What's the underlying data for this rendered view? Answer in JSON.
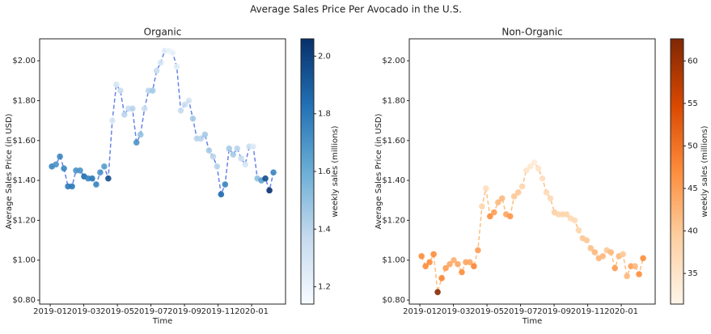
{
  "title": "Average Sales Price Per Avocado in the U.S.",
  "chart_data": [
    {
      "type": "scatter",
      "title": "Organic",
      "x_label": "Time",
      "y_label": "Average Sales Price (in USD)",
      "line_color": "#4a6de5",
      "colormap": [
        "#f7fbff",
        "#c6dbef",
        "#6baed6",
        "#2171b5",
        "#08306b"
      ],
      "colorbar_label": "weekly sales (millions)",
      "clim": [
        1.14,
        2.06
      ],
      "colorbar_ticks": [
        {
          "value": 1.2,
          "label": "1.2"
        },
        {
          "value": 1.4,
          "label": "1.4"
        },
        {
          "value": 1.6,
          "label": "1.6"
        },
        {
          "value": 1.8,
          "label": "1.8"
        },
        {
          "value": 2.0,
          "label": "2.0"
        }
      ],
      "xlim": [
        -0.63,
        14.02
      ],
      "ylim": [
        0.78,
        2.11
      ],
      "xticks": [
        {
          "value": 0,
          "label": "2019-01"
        },
        {
          "value": 2,
          "label": "2019-03"
        },
        {
          "value": 4,
          "label": "2019-05"
        },
        {
          "value": 6,
          "label": "2019-07"
        },
        {
          "value": 8,
          "label": "2019-09"
        },
        {
          "value": 10,
          "label": "2019-11"
        },
        {
          "value": 12,
          "label": "2020-01"
        }
      ],
      "yticks": [
        {
          "value": 0.8,
          "label": "$0.80"
        },
        {
          "value": 1.0,
          "label": "$1.00"
        },
        {
          "value": 1.2,
          "label": "$1.20"
        },
        {
          "value": 1.4,
          "label": "$1.40"
        },
        {
          "value": 1.6,
          "label": "$1.60"
        },
        {
          "value": 1.8,
          "label": "$1.80"
        },
        {
          "value": 2.0,
          "label": "$2.00"
        }
      ],
      "x": [
        0.1,
        0.34,
        0.58,
        0.82,
        1.06,
        1.3,
        1.54,
        1.78,
        2.02,
        2.26,
        2.5,
        2.74,
        2.98,
        3.22,
        3.46,
        3.7,
        3.94,
        4.18,
        4.42,
        4.66,
        4.9,
        5.14,
        5.38,
        5.62,
        5.86,
        6.1,
        6.34,
        6.58,
        6.82,
        7.06,
        7.3,
        7.54,
        7.78,
        8.02,
        8.26,
        8.5,
        8.74,
        8.98,
        9.22,
        9.46,
        9.7,
        9.94,
        10.18,
        10.42,
        10.66,
        10.9,
        11.14,
        11.38,
        11.62,
        11.86,
        12.1,
        12.34,
        12.58,
        12.82,
        13.06,
        13.3
      ],
      "values": [
        1.47,
        1.48,
        1.52,
        1.46,
        1.37,
        1.37,
        1.45,
        1.45,
        1.42,
        1.41,
        1.41,
        1.38,
        1.44,
        1.47,
        1.41,
        1.7,
        1.88,
        1.85,
        1.73,
        1.76,
        1.76,
        1.59,
        1.63,
        1.76,
        1.85,
        1.85,
        1.95,
        1.99,
        2.05,
        2.05,
        2.04,
        1.97,
        1.75,
        1.78,
        1.8,
        1.71,
        1.61,
        1.61,
        1.63,
        1.55,
        1.52,
        1.47,
        1.33,
        1.38,
        1.56,
        1.53,
        1.56,
        1.51,
        1.48,
        1.57,
        1.57,
        1.41,
        1.4,
        1.41,
        1.35,
        1.44
      ],
      "color_values": [
        1.75,
        1.7,
        1.75,
        1.75,
        1.8,
        1.8,
        1.7,
        1.7,
        1.85,
        1.75,
        1.8,
        1.75,
        1.7,
        1.65,
        1.95,
        1.3,
        1.3,
        1.35,
        1.4,
        1.35,
        1.4,
        1.7,
        1.5,
        1.35,
        1.4,
        1.45,
        1.35,
        1.3,
        1.25,
        1.2,
        1.2,
        1.25,
        1.35,
        1.35,
        1.3,
        1.45,
        1.4,
        1.4,
        1.45,
        1.45,
        1.4,
        1.4,
        1.85,
        1.75,
        1.45,
        1.45,
        1.4,
        1.35,
        1.3,
        1.35,
        1.25,
        1.5,
        1.65,
        1.95,
        2.05,
        1.75
      ]
    },
    {
      "type": "scatter",
      "title": "Non-Organic",
      "x_label": "Time",
      "y_label": "Average Sales Price (in USD)",
      "line_color": "#fdb46a",
      "colormap": [
        "#fff5eb",
        "#fdd0a2",
        "#fd8d3c",
        "#d94801",
        "#7f2704"
      ],
      "colorbar_label": "weekly sales (millions)",
      "clim": [
        31.4,
        62.6
      ],
      "colorbar_ticks": [
        35,
        40,
        45,
        50,
        55,
        60
      ],
      "xlim": [
        -0.63,
        14.02
      ],
      "ylim": [
        0.78,
        2.11
      ],
      "xticks": [
        {
          "value": 0,
          "label": "2019-01"
        },
        {
          "value": 2,
          "label": "2019-03"
        },
        {
          "value": 4,
          "label": "2019-05"
        },
        {
          "value": 6,
          "label": "2019-07"
        },
        {
          "value": 8,
          "label": "2019-09"
        },
        {
          "value": 10,
          "label": "2019-11"
        },
        {
          "value": 12,
          "label": "2020-01"
        }
      ],
      "yticks": [
        {
          "value": 0.8,
          "label": "$0.80"
        },
        {
          "value": 1.0,
          "label": "$1.00"
        },
        {
          "value": 1.2,
          "label": "$1.20"
        },
        {
          "value": 1.4,
          "label": "$1.40"
        },
        {
          "value": 1.6,
          "label": "$1.60"
        },
        {
          "value": 1.8,
          "label": "$1.80"
        },
        {
          "value": 2.0,
          "label": "$2.00"
        }
      ],
      "x": [
        0.1,
        0.34,
        0.58,
        0.82,
        1.06,
        1.3,
        1.54,
        1.78,
        2.02,
        2.26,
        2.5,
        2.74,
        2.98,
        3.22,
        3.46,
        3.7,
        3.94,
        4.18,
        4.42,
        4.66,
        4.9,
        5.14,
        5.38,
        5.62,
        5.86,
        6.1,
        6.34,
        6.58,
        6.82,
        7.06,
        7.3,
        7.54,
        7.78,
        8.02,
        8.26,
        8.5,
        8.74,
        8.98,
        9.22,
        9.46,
        9.7,
        9.94,
        10.18,
        10.42,
        10.66,
        10.9,
        11.14,
        11.38,
        11.62,
        11.86,
        12.1,
        12.34,
        12.58,
        12.82,
        13.06,
        13.3
      ],
      "values": [
        1.02,
        0.97,
        0.99,
        1.03,
        0.84,
        0.91,
        0.96,
        0.98,
        1.0,
        0.98,
        0.94,
        0.99,
        0.99,
        0.97,
        1.05,
        1.27,
        1.36,
        1.22,
        1.24,
        1.29,
        1.31,
        1.23,
        1.22,
        1.32,
        1.34,
        1.37,
        1.45,
        1.47,
        1.49,
        1.46,
        1.41,
        1.34,
        1.31,
        1.24,
        1.23,
        1.23,
        1.23,
        1.21,
        1.2,
        1.15,
        1.11,
        1.1,
        1.06,
        1.04,
        1.01,
        1.02,
        1.05,
        1.04,
        0.96,
        1.02,
        1.03,
        0.92,
        0.97,
        0.97,
        0.93,
        1.01
      ],
      "color_values": [
        47,
        47,
        47,
        47,
        62,
        48,
        45,
        44,
        43,
        44,
        47,
        44,
        44,
        48,
        45,
        38,
        36,
        47,
        45,
        42,
        42,
        44,
        46,
        40,
        40,
        38,
        35,
        34,
        33,
        35,
        36,
        37,
        37,
        39,
        38,
        38,
        38,
        37,
        37,
        38,
        40,
        40,
        41,
        42,
        42,
        42,
        40,
        42,
        45,
        42,
        40,
        42,
        45,
        42,
        47,
        47
      ]
    }
  ]
}
